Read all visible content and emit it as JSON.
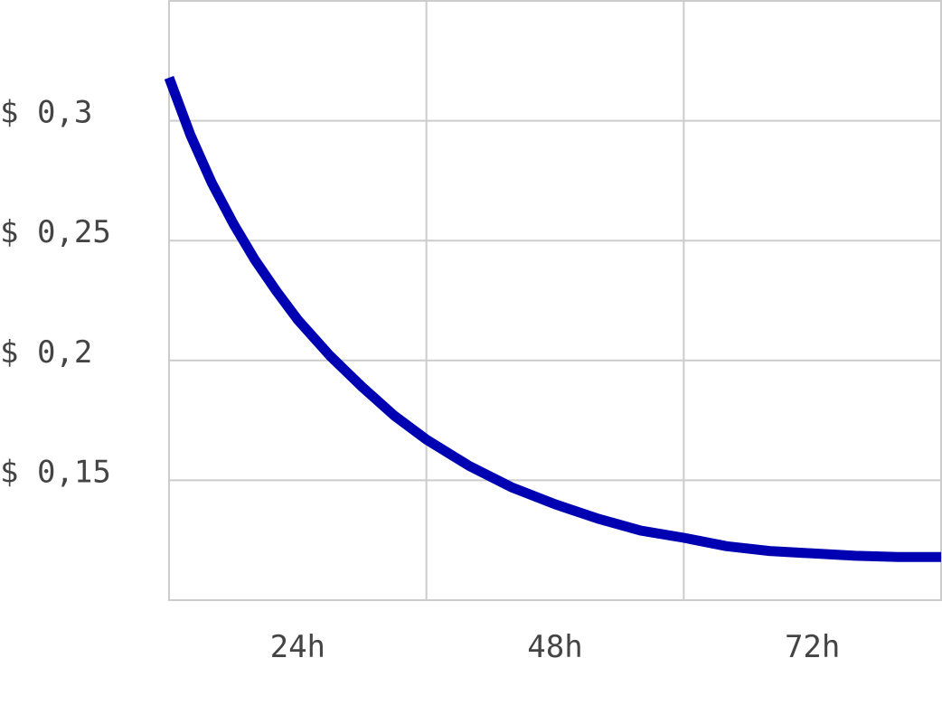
{
  "chart_data": {
    "type": "line",
    "title": "",
    "xlabel": "",
    "ylabel": "",
    "x_unit": "hours",
    "xlim": [
      0,
      72
    ],
    "ylim": [
      0.1,
      0.35
    ],
    "x_gridlines": [
      24,
      48
    ],
    "y_gridlines": [
      0.15,
      0.2,
      0.25,
      0.3
    ],
    "x_ticks": [
      {
        "value": 12,
        "label": "24h"
      },
      {
        "value": 36,
        "label": "48h"
      },
      {
        "value": 60,
        "label": "72h"
      }
    ],
    "y_ticks": [
      {
        "value": 0.3,
        "label": "$ 0,3"
      },
      {
        "value": 0.25,
        "label": "$ 0,25"
      },
      {
        "value": 0.2,
        "label": "$ 0,2"
      },
      {
        "value": 0.15,
        "label": "$ 0,15"
      }
    ],
    "grid": true,
    "legend": "none",
    "series": [
      {
        "color": "#0000b3",
        "x": [
          0,
          2,
          4,
          6,
          8,
          10,
          12,
          15,
          18,
          21,
          24,
          28,
          32,
          36,
          40,
          44,
          48,
          52,
          56,
          60,
          64,
          68,
          72
        ],
        "y": [
          0.318,
          0.294,
          0.274,
          0.257,
          0.242,
          0.229,
          0.217,
          0.202,
          0.189,
          0.177,
          0.167,
          0.156,
          0.147,
          0.14,
          0.134,
          0.129,
          0.126,
          0.1225,
          0.1205,
          0.1195,
          0.1185,
          0.118,
          0.118
        ]
      }
    ]
  }
}
